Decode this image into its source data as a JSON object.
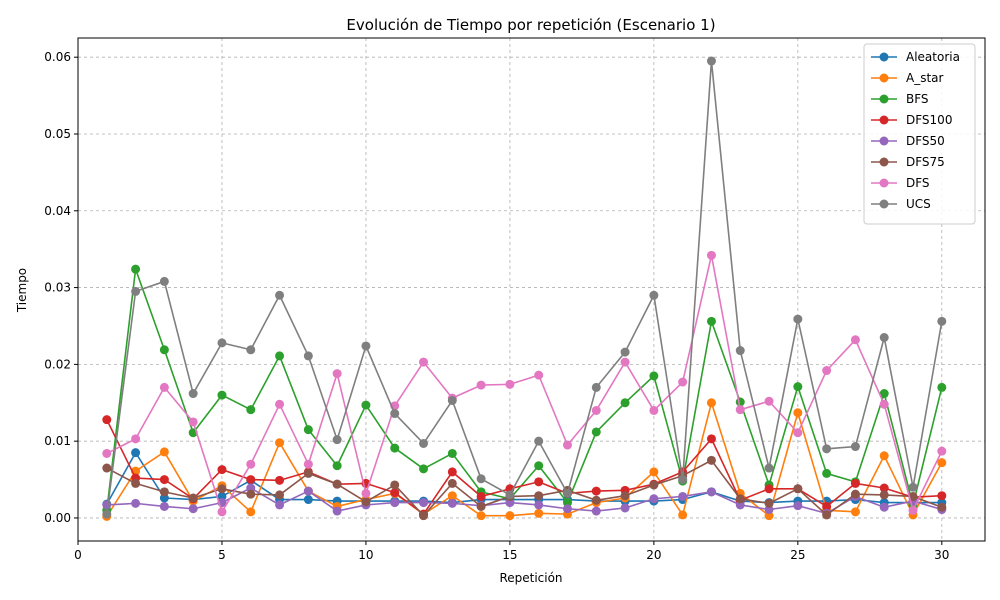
{
  "chart_data": {
    "type": "line",
    "title": "Evolución de Tiempo por repetición (Escenario 1)",
    "xlabel": "Repetición",
    "ylabel": "Tiempo",
    "xlim": [
      0,
      31.5
    ],
    "ylim": [
      -0.003,
      0.0625
    ],
    "xticks": [
      0,
      5,
      10,
      15,
      20,
      25,
      30
    ],
    "yticks": [
      0.0,
      0.01,
      0.02,
      0.03,
      0.04,
      0.05,
      0.06
    ],
    "xtick_labels": [
      "0",
      "5",
      "10",
      "15",
      "20",
      "25",
      "30"
    ],
    "ytick_labels": [
      "0.00",
      "0.01",
      "0.02",
      "0.03",
      "0.04",
      "0.05",
      "0.06"
    ],
    "grid": true,
    "legend_position": "top-right",
    "x": [
      1,
      2,
      3,
      4,
      5,
      6,
      7,
      8,
      9,
      10,
      11,
      12,
      13,
      14,
      15,
      16,
      17,
      18,
      19,
      20,
      21,
      22,
      23,
      24,
      25,
      26,
      27,
      28,
      29,
      30
    ],
    "series": [
      {
        "name": "Aleatoria",
        "color": "#1f77b4",
        "values": [
          0.0018,
          0.0085,
          0.0026,
          0.0024,
          0.0028,
          0.0049,
          0.0024,
          0.0024,
          0.0022,
          0.0022,
          0.0022,
          0.0022,
          0.002,
          0.0024,
          0.0024,
          0.0024,
          0.0024,
          0.0022,
          0.0022,
          0.0022,
          0.0024,
          0.0034,
          0.0022,
          0.002,
          0.0022,
          0.0022,
          0.0024,
          0.002,
          0.002,
          0.002
        ]
      },
      {
        "name": "A_star",
        "color": "#ff7f0e",
        "values": [
          0.0002,
          0.0061,
          0.0086,
          0.0022,
          0.0042,
          0.0008,
          0.0098,
          0.0035,
          0.0015,
          0.0024,
          0.0032,
          0.0005,
          0.0029,
          0.0003,
          0.0003,
          0.0006,
          0.0005,
          0.002,
          0.0026,
          0.006,
          0.0004,
          0.015,
          0.0032,
          0.0003,
          0.0137,
          0.001,
          0.0008,
          0.0081,
          0.0004,
          0.0072
        ]
      },
      {
        "name": "BFS",
        "color": "#2ca02c",
        "values": [
          0.001,
          0.0324,
          0.0219,
          0.0111,
          0.016,
          0.0141,
          0.0211,
          0.0115,
          0.0068,
          0.0147,
          0.0091,
          0.0064,
          0.0084,
          0.0034,
          0.0025,
          0.0068,
          0.002,
          0.0112,
          0.015,
          0.0185,
          0.0048,
          0.0256,
          0.0151,
          0.0043,
          0.0171,
          0.0058,
          0.0047,
          0.0162,
          0.0017,
          0.017
        ]
      },
      {
        "name": "DFS100",
        "color": "#d62728",
        "values": [
          0.0128,
          0.0052,
          0.005,
          0.0025,
          0.0063,
          0.005,
          0.0049,
          0.006,
          0.0044,
          0.0045,
          0.0033,
          0.0005,
          0.006,
          0.0028,
          0.0038,
          0.0047,
          0.0032,
          0.0035,
          0.0036,
          0.0044,
          0.006,
          0.0103,
          0.0023,
          0.0038,
          0.0038,
          0.0015,
          0.0045,
          0.0039,
          0.0027,
          0.0029
        ]
      },
      {
        "name": "DFS50",
        "color": "#9467bd",
        "values": [
          0.0017,
          0.0019,
          0.0015,
          0.0012,
          0.002,
          0.0039,
          0.0017,
          0.0035,
          0.0009,
          0.0017,
          0.002,
          0.002,
          0.0019,
          0.0016,
          0.002,
          0.0017,
          0.0012,
          0.0009,
          0.0013,
          0.0025,
          0.0028,
          0.0034,
          0.0017,
          0.0011,
          0.0016,
          0.0006,
          0.0028,
          0.0014,
          0.0022,
          0.0011
        ]
      },
      {
        "name": "DFS75",
        "color": "#8c564b",
        "values": [
          0.0065,
          0.0045,
          0.0034,
          0.0026,
          0.0038,
          0.0031,
          0.003,
          0.0058,
          0.0044,
          0.0021,
          0.0043,
          0.0003,
          0.0045,
          0.0015,
          0.0028,
          0.0029,
          0.0036,
          0.0023,
          0.0029,
          0.0043,
          0.0055,
          0.0075,
          0.0025,
          0.0019,
          0.0038,
          0.0004,
          0.0031,
          0.003,
          0.0028,
          0.0014
        ]
      },
      {
        "name": "DFS",
        "color": "#e377c2",
        "values": [
          0.0084,
          0.0103,
          0.017,
          0.0125,
          0.0008,
          0.007,
          0.0148,
          0.007,
          0.0188,
          0.0032,
          0.0146,
          0.0203,
          0.0156,
          0.0173,
          0.0174,
          0.0186,
          0.0095,
          0.014,
          0.0203,
          0.014,
          0.0177,
          0.0342,
          0.0141,
          0.0152,
          0.0111,
          0.0192,
          0.0232,
          0.0148,
          0.001,
          0.0087
        ]
      },
      {
        "name": "UCS",
        "color": "#7f7f7f",
        "values": [
          0.0005,
          0.0295,
          0.0308,
          0.0162,
          0.0228,
          0.0219,
          0.029,
          0.0211,
          0.0102,
          0.0224,
          0.0136,
          0.0097,
          0.0153,
          0.0051,
          0.003,
          0.01,
          0.0032,
          0.017,
          0.0216,
          0.029,
          0.005,
          0.0595,
          0.0218,
          0.0065,
          0.0259,
          0.009,
          0.0093,
          0.0235,
          0.004,
          0.0256
        ]
      }
    ]
  }
}
